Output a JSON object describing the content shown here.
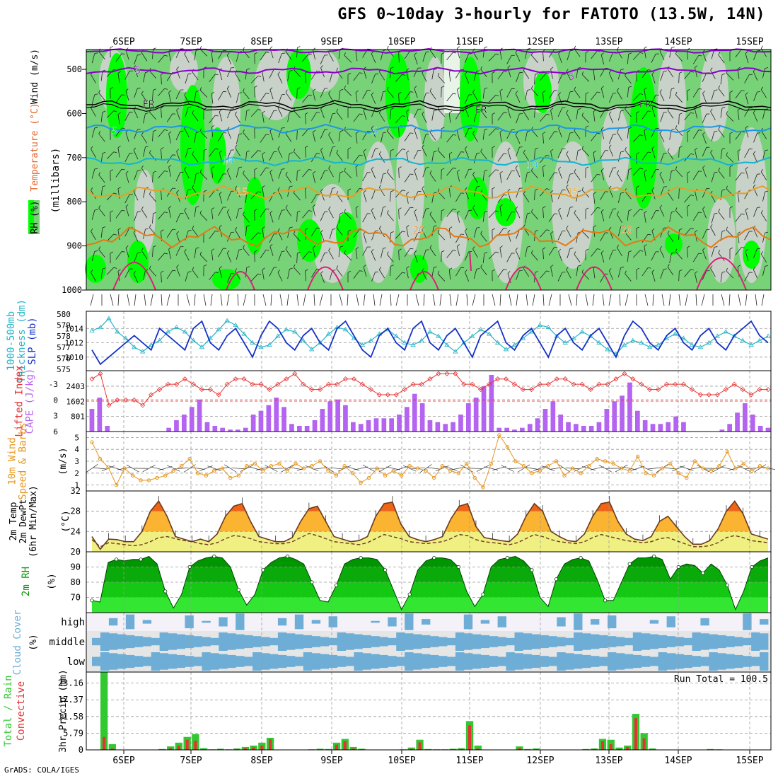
{
  "title": "GFS 0~10day 3-hourly for FATOTO (13.5W, 14N)",
  "credit": "GrADS: COLA/IGES",
  "colors": {
    "rh_light": "#c8d2c8",
    "rh_mid": "#78d278",
    "rh_bright": "#00ff00",
    "rh_dark": "#00e000",
    "temp_purple": "#8a00c8",
    "temp_black": "#000000",
    "temp_blue": "#1e96e6",
    "temp_cyan": "#14b4d2",
    "temp_orange": "#e6a028",
    "temp_orange2": "#e67814",
    "temp_magenta": "#dc1e78",
    "slp": "#1432c8",
    "thickness": "#28b4c8",
    "lifted": "#e63232",
    "cape": "#b464f0",
    "wind_speed": "#e6961e",
    "temp_fill_hi": "#f06414",
    "temp_fill_mid": "#fab432",
    "temp_fill_lo": "#f0f082",
    "rh2m_dark": "#009600",
    "rh2m_mid": "#14c814",
    "rh2m_light": "#32e632",
    "cloud": "#6eaed6",
    "cloud_bg": "#e6e6e6",
    "precip_total": "#32c832",
    "precip_conv": "#e63232"
  },
  "chart_data": {
    "dates": [
      "6SEP",
      "7SEP",
      "8SEP",
      "9SEP",
      "10SEP",
      "11SEP",
      "12SEP",
      "13SEP",
      "14SEP",
      "15SEP"
    ],
    "panels": [
      {
        "id": "upper_air",
        "type": "heatmap",
        "ylabel_left": [
          "RH (%)",
          "Temperature (°C)",
          "Wind (m/s)"
        ],
        "ylabel": "(millibars)",
        "yticks": [
          500,
          600,
          700,
          800,
          900,
          1000
        ],
        "ylim": [
          455,
          1000
        ],
        "contour_labels": [
          {
            "text": "5",
            "line": "purple"
          },
          {
            "text": "5",
            "line": "purple"
          },
          {
            "text": "FR",
            "line": "black"
          },
          {
            "text": "FR",
            "line": "black"
          },
          {
            "text": "FR",
            "line": "black"
          },
          {
            "text": "5",
            "line": "blue"
          },
          {
            "text": "5",
            "line": "blue"
          },
          {
            "text": "10",
            "line": "cyan"
          },
          {
            "text": "10",
            "line": "cyan"
          },
          {
            "text": "15",
            "line": "orange"
          },
          {
            "text": "15",
            "line": "orange"
          },
          {
            "text": "20",
            "line": "orange2"
          },
          {
            "text": "20",
            "line": "orange2"
          }
        ]
      },
      {
        "id": "pressure",
        "type": "line",
        "ylabel_left": [
          "1000-500mb",
          "Thickness (dm)",
          "SLP (mb)"
        ],
        "yticks_left": [
          575,
          576,
          577,
          578,
          579,
          580
        ],
        "yticks_right": [
          1010,
          1012,
          1014
        ],
        "slp": [
          1011,
          1009,
          1010,
          1011,
          1012,
          1013,
          1012,
          1011,
          1014,
          1013,
          1012,
          1011,
          1014,
          1015,
          1012,
          1011,
          1013,
          1014,
          1012,
          1010,
          1013,
          1015,
          1014,
          1012,
          1011,
          1013,
          1014,
          1012,
          1011,
          1014,
          1015,
          1013,
          1011,
          1010,
          1013,
          1014,
          1012,
          1011,
          1014,
          1015,
          1012,
          1011,
          1013,
          1014,
          1012,
          1010,
          1013,
          1014,
          1015,
          1012,
          1011,
          1013,
          1014,
          1012,
          1010,
          1013,
          1014,
          1012,
          1011,
          1013,
          1014,
          1012,
          1010,
          1013,
          1015,
          1014,
          1012,
          1011,
          1013,
          1014,
          1012,
          1011,
          1013,
          1014,
          1012,
          1011,
          1013,
          1014,
          1015,
          1013,
          1012
        ],
        "thickness": [
          578.5,
          578.8,
          579.6,
          578.4,
          577.8,
          577.0,
          576.6,
          577.2,
          577.6,
          578.4,
          578.8,
          578.4,
          577.6,
          577.0,
          577.8,
          578.6,
          579.4,
          579.0,
          578.2,
          577.4,
          577.0,
          577.2,
          578.0,
          578.6,
          578.4,
          577.6,
          576.8,
          577.4,
          578.2,
          578.8,
          578.6,
          577.8,
          577.2,
          577.6,
          578.2,
          578.6,
          578.0,
          577.4,
          577.2,
          577.6,
          578.4,
          578.0,
          577.2,
          576.6,
          577.4,
          578.0,
          578.6,
          578.2,
          577.4,
          576.8,
          577.2,
          577.8,
          578.4,
          579.0,
          578.8,
          578.0,
          577.4,
          577.8,
          578.4,
          578.0,
          577.4,
          576.8,
          576.4,
          577.2,
          577.6,
          577.4,
          577.0,
          577.2,
          577.8,
          578.2,
          577.8,
          577.2,
          577.0,
          577.4,
          578.0,
          578.4,
          578.0,
          577.6,
          577.2,
          577.6,
          578.0
        ]
      },
      {
        "id": "stability",
        "type": "bar",
        "ylabel_left": [
          "Lifted Index",
          "CAPE (J/kg)"
        ],
        "yticks_left": [
          -3,
          0,
          3,
          6
        ],
        "yticks_right": [
          801,
          1602,
          2403
        ],
        "lifted_index": [
          -4,
          -5,
          1,
          0,
          0,
          0,
          1,
          -1,
          -2,
          -3,
          -3,
          -4,
          -3,
          -2,
          -2,
          -1,
          -3,
          -4,
          -4,
          -3,
          -3,
          -2,
          -3,
          -4,
          -5,
          -3,
          -2,
          -2,
          -3,
          -3,
          -4,
          -4,
          -3,
          -2,
          -1,
          -1,
          -1,
          -2,
          -3,
          -3,
          -4,
          -5,
          -5,
          -5,
          -3,
          -3,
          -2,
          -3,
          -4,
          -4,
          -3,
          -2,
          -2,
          -3,
          -3,
          -4,
          -4,
          -3,
          -3,
          -2,
          -3,
          -3,
          -4,
          -5,
          -4,
          -3,
          -2,
          -2,
          -3,
          -3,
          -3,
          -2,
          -1,
          -1,
          -1,
          -2,
          -3,
          -2,
          -1,
          -2,
          -2
        ],
        "cape": [
          1200,
          1800,
          300,
          0,
          0,
          0,
          0,
          0,
          0,
          0,
          200,
          600,
          900,
          1300,
          1700,
          500,
          300,
          200,
          100,
          100,
          200,
          900,
          1100,
          1400,
          1800,
          1300,
          400,
          300,
          300,
          600,
          1200,
          1600,
          1700,
          1400,
          500,
          400,
          600,
          700,
          700,
          700,
          900,
          1300,
          2000,
          1500,
          600,
          500,
          400,
          500,
          900,
          1500,
          1800,
          2400,
          3000,
          200,
          200,
          100,
          200,
          400,
          700,
          1200,
          1600,
          900,
          500,
          400,
          300,
          300,
          500,
          1200,
          1600,
          1900,
          2600,
          1100,
          600,
          400,
          400,
          500,
          800,
          500,
          0,
          0,
          0,
          0,
          100,
          400,
          1000,
          1500,
          900,
          300,
          200
        ]
      },
      {
        "id": "wind10m",
        "type": "line",
        "ylabel_left": [
          "10m Wind",
          "Speed & Barbs"
        ],
        "ylabel": "(m/s)",
        "yticks": [
          1,
          2,
          3,
          4,
          5
        ],
        "ylim": [
          0.5,
          5.5
        ],
        "speed": [
          4.6,
          3.2,
          2.5,
          1.0,
          2.4,
          1.8,
          1.4,
          1.4,
          1.6,
          1.8,
          2.2,
          2.6,
          3.2,
          2.0,
          1.8,
          2.2,
          2.4,
          1.6,
          1.8,
          2.6,
          2.8,
          2.2,
          2.6,
          2.8,
          2.2,
          2.8,
          2.4,
          2.6,
          3.0,
          2.2,
          1.8,
          2.6,
          2.0,
          1.2,
          1.6,
          2.4,
          1.8,
          2.2,
          1.8,
          2.6,
          2.4,
          2.2,
          1.6,
          2.6,
          2.2,
          2.0,
          2.8,
          1.6,
          0.8,
          2.8,
          5.2,
          4.2,
          3.0,
          2.6,
          2.0,
          2.2,
          2.6,
          3.0,
          1.8,
          2.4,
          2.0,
          2.6,
          3.2,
          3.0,
          2.8,
          2.4,
          2.2,
          3.4,
          2.0,
          1.8,
          2.4,
          2.8,
          2.0,
          1.6,
          3.0,
          2.4,
          2.2,
          2.6,
          3.8,
          2.4,
          2.8,
          2.2,
          2.6,
          2.4
        ]
      },
      {
        "id": "temp2m",
        "type": "area",
        "ylabel_left": [
          "2m Temp",
          "2m DewPt",
          "(6hr Min/Max)"
        ],
        "ylabel": "(°C)",
        "yticks": [
          20,
          24,
          28,
          32
        ],
        "ylim": [
          20,
          32
        ],
        "temperature": [
          23.0,
          20.5,
          22.5,
          22.4,
          22.0,
          22.0,
          24.0,
          28.0,
          30.0,
          27.0,
          23.0,
          22.5,
          22.0,
          22.5,
          22.0,
          23.5,
          27.0,
          29.0,
          29.5,
          26.0,
          23.0,
          22.5,
          22.0,
          22.0,
          22.8,
          26.0,
          28.5,
          29.0,
          26.0,
          23.0,
          22.5,
          22.0,
          22.2,
          23.0,
          27.0,
          29.5,
          29.8,
          25.5,
          23.0,
          22.4,
          22.0,
          22.4,
          23.0,
          26.5,
          29.0,
          29.5,
          25.0,
          22.8,
          22.5,
          22.2,
          22.0,
          23.5,
          27.0,
          29.5,
          28.0,
          24.0,
          23.0,
          22.2,
          22.0,
          23.5,
          27.0,
          29.5,
          29.8,
          26.0,
          23.5,
          22.5,
          22.2,
          23.0,
          26.0,
          27.0,
          25.0,
          23.0,
          21.5,
          21.5,
          22.2,
          24.5,
          28.0,
          30.0,
          27.5,
          23.5,
          23.0,
          22.5
        ],
        "dewpoint": [
          22.4,
          21.0,
          21.8,
          21.6,
          21.4,
          21.2,
          21.4,
          22.0,
          22.8,
          23.0,
          22.6,
          22.2,
          22.0,
          21.6,
          21.4,
          21.8,
          22.6,
          23.2,
          23.0,
          22.6,
          22.0,
          21.8,
          21.6,
          21.6,
          22.0,
          22.8,
          23.6,
          23.2,
          22.6,
          22.0,
          21.8,
          21.6,
          21.4,
          21.8,
          22.6,
          23.4,
          23.0,
          22.6,
          22.0,
          21.8,
          21.6,
          21.8,
          22.0,
          22.6,
          23.4,
          23.2,
          22.4,
          22.0,
          21.8,
          21.6,
          21.4,
          21.8,
          22.6,
          23.4,
          23.0,
          22.4,
          22.0,
          21.8,
          21.6,
          22.0,
          22.8,
          23.4,
          23.0,
          22.6,
          22.2,
          22.0,
          21.8,
          22.0,
          22.6,
          22.8,
          22.2,
          21.6,
          21.0,
          21.0,
          21.2,
          21.8,
          22.8,
          23.2,
          22.8,
          22.2,
          22.0,
          21.8
        ]
      },
      {
        "id": "rh2m",
        "type": "area",
        "ylabel_left": [
          "2m RH"
        ],
        "ylabel": "(%)",
        "yticks": [
          70,
          80,
          90
        ],
        "ylim": [
          60,
          100
        ],
        "rh": [
          68,
          67,
          93,
          95,
          94,
          95,
          95,
          97,
          92,
          74,
          63,
          72,
          90,
          94,
          96,
          97,
          96,
          90,
          75,
          65,
          72,
          88,
          93,
          96,
          97,
          95,
          92,
          80,
          68,
          67,
          78,
          92,
          95,
          96,
          96,
          95,
          88,
          75,
          62,
          72,
          88,
          94,
          96,
          96,
          95,
          90,
          74,
          64,
          72,
          90,
          95,
          96,
          97,
          94,
          88,
          70,
          64,
          82,
          92,
          95,
          96,
          94,
          82,
          68,
          68,
          80,
          92,
          96,
          96,
          97,
          95,
          82,
          90,
          92,
          91,
          86,
          92,
          88,
          78,
          62,
          74,
          90,
          94,
          96
        ]
      },
      {
        "id": "cloud",
        "type": "area",
        "ylabel_left": [
          "Cloud Cover"
        ],
        "ylabel": "(%)",
        "levels": [
          "high",
          "middle",
          "low"
        ]
      },
      {
        "id": "precip",
        "type": "bar",
        "ylabel_left": [
          "Total / Rain",
          "Convective"
        ],
        "ylabel": "3hr Precip (mm)",
        "yticks": [
          0,
          5.79,
          11.58,
          17.37,
          23.16
        ],
        "ylim": [
          0,
          27
        ],
        "run_total": "Run Total = 100.5",
        "total": [
          27.0,
          2.0,
          0,
          0,
          0,
          0,
          0,
          0.3,
          1.2,
          2.5,
          4.5,
          5.5,
          0.6,
          0.2,
          0.4,
          0.2,
          0.5,
          1.0,
          1.5,
          2.5,
          4.2,
          0,
          0,
          0,
          0,
          0.2,
          0.4,
          0.3,
          2.5,
          3.8,
          1.0,
          0.4,
          0,
          0,
          0,
          0,
          0.2,
          0.8,
          3.5,
          0.3,
          0.2,
          0.2,
          0.4,
          0.6,
          10.0,
          1.5,
          0,
          0,
          0,
          0,
          1.2,
          0.3,
          0.5,
          0,
          0,
          0,
          0,
          0,
          0.3,
          0.5,
          3.8,
          3.5,
          0.8,
          1.5,
          12.5,
          5.8,
          0.5,
          0,
          0,
          0,
          0,
          0,
          0,
          0.3,
          0.2,
          0,
          0,
          0,
          0
        ],
        "convective": [
          4.5,
          0.5,
          0,
          0,
          0,
          0,
          0,
          0.1,
          0.6,
          1.5,
          3.5,
          3.2,
          0.2,
          0.1,
          0.2,
          0.1,
          0.3,
          0.6,
          0.9,
          1.5,
          3.6,
          0,
          0,
          0,
          0,
          0.1,
          0.2,
          0.1,
          1.8,
          3.0,
          0.5,
          0.2,
          0,
          0,
          0,
          0,
          0.1,
          0.4,
          2.6,
          0.1,
          0.1,
          0.1,
          0.2,
          0.3,
          8.5,
          0.5,
          0,
          0,
          0,
          0,
          0.6,
          0.1,
          0.2,
          0,
          0,
          0,
          0,
          0,
          0.1,
          0.3,
          3.0,
          2.0,
          0.3,
          1.0,
          11.0,
          4.0,
          0.2,
          0,
          0,
          0,
          0,
          0,
          0,
          0.1,
          0.1,
          0,
          0,
          0,
          0
        ]
      }
    ]
  }
}
